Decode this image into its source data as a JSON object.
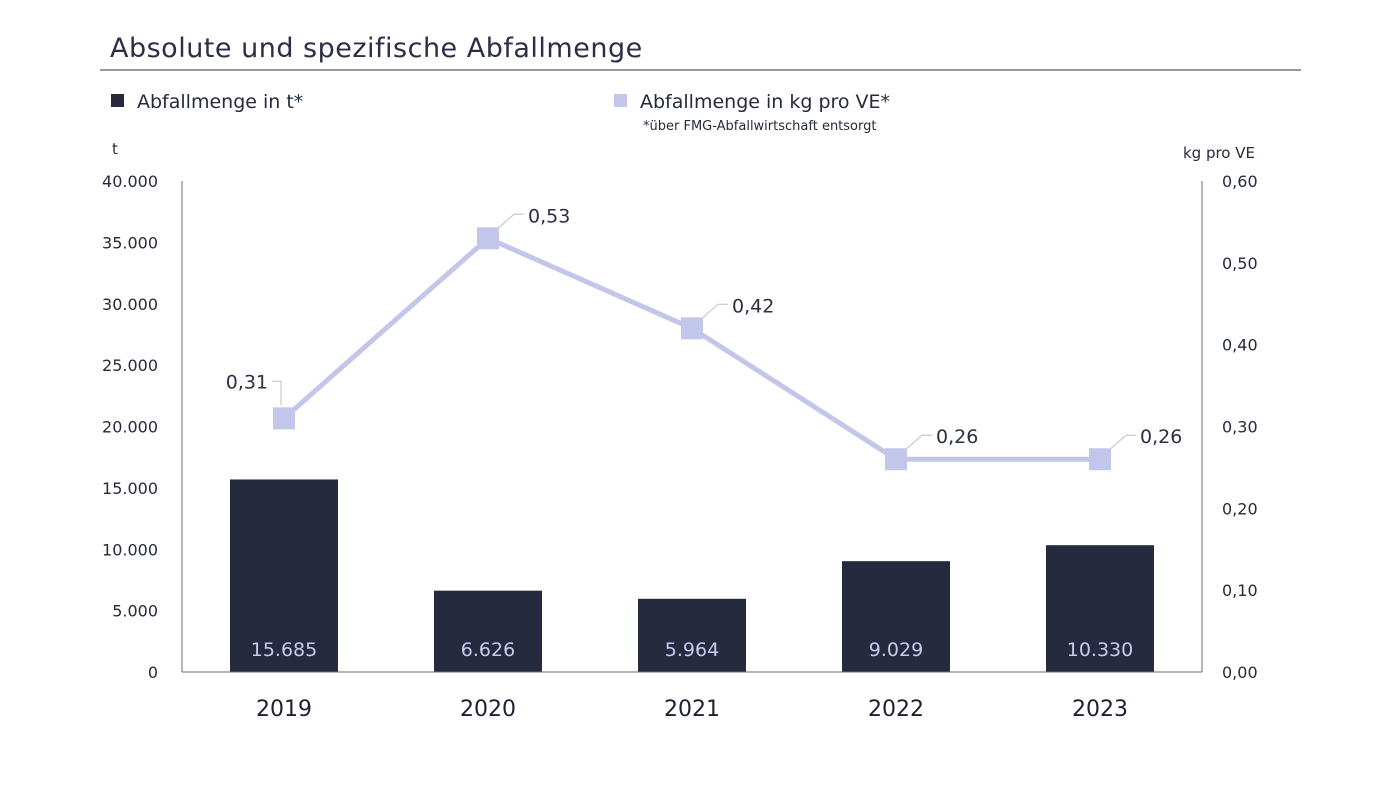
{
  "title": "Absolute und spezifische Abfallmenge",
  "legend": [
    {
      "label": "Abfallmenge in t*",
      "color": "#252a3e"
    },
    {
      "label": "Abfallmenge in kg pro VE*",
      "color": "#c3c6eb"
    }
  ],
  "footnote": "*über FMG-Abfallwirtschaft entsorgt",
  "colors": {
    "bar": "#252a3e",
    "line": "#c3c6eb",
    "axis": "#6b6b6b",
    "rule": "#333333"
  },
  "chart_data": {
    "type": "bar",
    "categories": [
      "2019",
      "2020",
      "2021",
      "2022",
      "2023"
    ],
    "series": [
      {
        "name": "Abfallmenge in t*",
        "type": "bar",
        "axis": "left",
        "values": [
          15685,
          6626,
          5964,
          9029,
          10330
        ],
        "labels": [
          "15.685",
          "6.626",
          "5.964",
          "9.029",
          "10.330"
        ]
      },
      {
        "name": "Abfallmenge in kg pro VE*",
        "type": "line",
        "axis": "right",
        "values": [
          0.31,
          0.53,
          0.42,
          0.26,
          0.26
        ],
        "labels": [
          "0,31",
          "0,53",
          "0,42",
          "0,26",
          "0,26"
        ]
      }
    ],
    "y_left": {
      "unit": "t",
      "range": [
        0,
        40000
      ],
      "ticks": [
        "0",
        "5.000",
        "10.000",
        "15.000",
        "20.000",
        "25.000",
        "30.000",
        "35.000",
        "40.000"
      ]
    },
    "y_right": {
      "unit": "kg pro VE",
      "range": [
        0,
        0.6
      ],
      "ticks": [
        "0,00",
        "0,10",
        "0,20",
        "0,30",
        "0,40",
        "0,50",
        "0,60"
      ]
    },
    "grid": false,
    "legend_position": "top"
  }
}
